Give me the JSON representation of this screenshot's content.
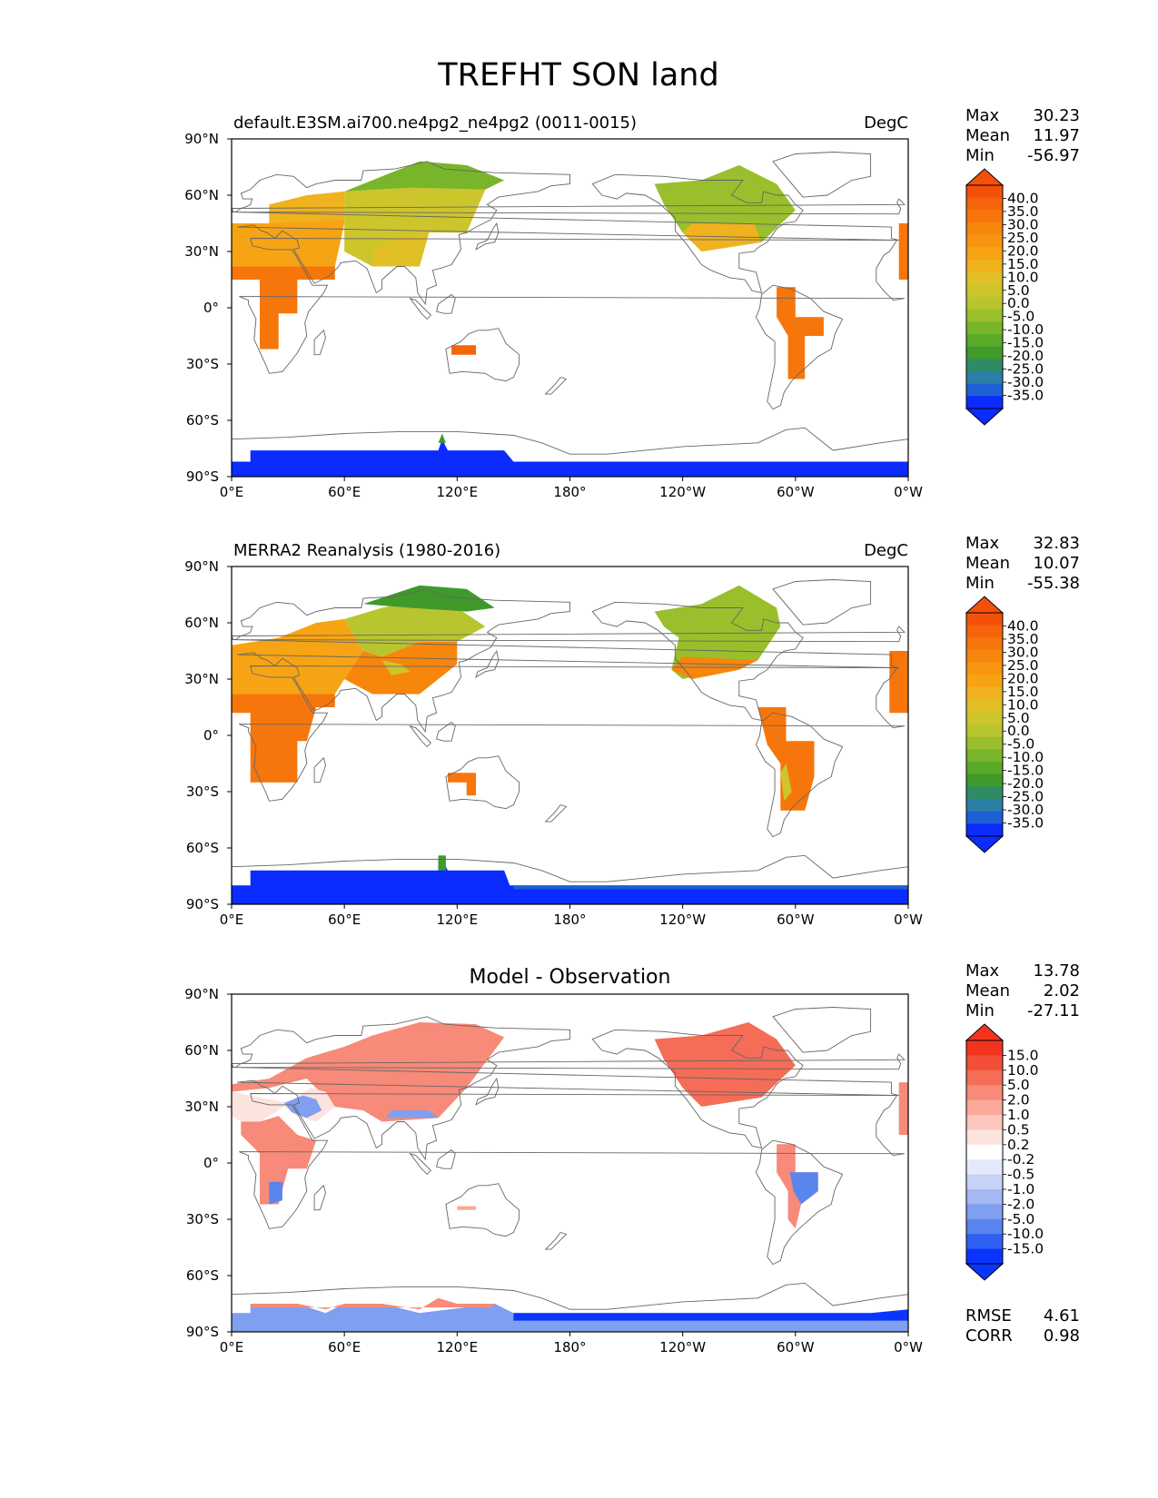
{
  "title": "TREFHT SON land",
  "colors": {
    "abs_levels": [
      "#0b2bff",
      "#1e5fd6",
      "#2a7fa6",
      "#2f8b66",
      "#3f9a2a",
      "#5aa928",
      "#79b52a",
      "#99bf2c",
      "#b9c52f",
      "#cdc52c",
      "#e0bf27",
      "#f0b21f",
      "#f7a414",
      "#f79510",
      "#f7860d",
      "#f6760c",
      "#f5640b",
      "#f4500a"
    ],
    "diff_levels": [
      "#0a35ff",
      "#2f5ff0",
      "#5a84ee",
      "#7f9ff0",
      "#a6b8f3",
      "#c7d2f7",
      "#e3e8fb",
      "#ffffff",
      "#fde3de",
      "#fbc6bc",
      "#f9a89a",
      "#f78a78",
      "#f56c57",
      "#f34e38",
      "#f2341f"
    ],
    "africa_abs": "#f7900f",
    "ocean": "#ffffff",
    "coast": "#666666"
  },
  "chart_data": [
    {
      "type": "heatmap",
      "panel": "test",
      "left_title": "default.E3SM.ai700.ne4pg2_ne4pg2 (0011-0015)",
      "center_title": "",
      "right_title": "DegC",
      "stats": [
        {
          "label": "Max",
          "value": "30.23"
        },
        {
          "label": "Mean",
          "value": "11.97"
        },
        {
          "label": "Min",
          "value": "-56.97"
        }
      ],
      "colorbar_labels": [
        "40.0",
        "35.0",
        "30.0",
        "25.0",
        "20.0",
        "15.0",
        "10.0",
        "5.0",
        "0.0",
        "-5.0",
        "-10.0",
        "-15.0",
        "-20.0",
        "-25.0",
        "-30.0",
        "-35.0"
      ],
      "lon_ticks": [
        "0°E",
        "60°E",
        "120°E",
        "180°",
        "120°W",
        "60°W",
        "0°W"
      ],
      "lat_ticks": [
        "90°N",
        "60°N",
        "30°N",
        "0°",
        "30°S",
        "60°S",
        "90°S"
      ],
      "xlim": [
        0,
        360
      ],
      "ylim": [
        -90,
        90
      ]
    },
    {
      "type": "heatmap",
      "panel": "reference",
      "left_title": "MERRA2 Reanalysis (1980-2016)",
      "center_title": "",
      "right_title": "DegC",
      "stats": [
        {
          "label": "Max",
          "value": "32.83"
        },
        {
          "label": "Mean",
          "value": "10.07"
        },
        {
          "label": "Min",
          "value": "-55.38"
        }
      ],
      "colorbar_labels": [
        "40.0",
        "35.0",
        "30.0",
        "25.0",
        "20.0",
        "15.0",
        "10.0",
        "5.0",
        "0.0",
        "-5.0",
        "-10.0",
        "-15.0",
        "-20.0",
        "-25.0",
        "-30.0",
        "-35.0"
      ],
      "lon_ticks": [
        "0°E",
        "60°E",
        "120°E",
        "180°",
        "120°W",
        "60°W",
        "0°W"
      ],
      "lat_ticks": [
        "90°N",
        "60°N",
        "30°N",
        "0°",
        "30°S",
        "60°S",
        "90°S"
      ],
      "xlim": [
        0,
        360
      ],
      "ylim": [
        -90,
        90
      ]
    },
    {
      "type": "heatmap",
      "panel": "difference",
      "left_title": "",
      "center_title": "Model - Observation",
      "right_title": "",
      "stats": [
        {
          "label": "Max",
          "value": "13.78"
        },
        {
          "label": "Mean",
          "value": "2.02"
        },
        {
          "label": "Min",
          "value": "-27.11"
        }
      ],
      "extra_stats": [
        {
          "label": "RMSE",
          "value": "4.61"
        },
        {
          "label": "CORR",
          "value": "0.98"
        }
      ],
      "colorbar_labels": [
        "15.0",
        "10.0",
        "5.0",
        "2.0",
        "1.0",
        "0.5",
        "0.2",
        "-0.2",
        "-0.5",
        "-1.0",
        "-2.0",
        "-5.0",
        "-10.0",
        "-15.0"
      ],
      "lon_ticks": [
        "0°E",
        "60°E",
        "120°E",
        "180°",
        "120°W",
        "60°W",
        "0°W"
      ],
      "lat_ticks": [
        "90°N",
        "60°N",
        "30°N",
        "0°",
        "30°S",
        "60°S",
        "90°S"
      ],
      "xlim": [
        0,
        360
      ],
      "ylim": [
        -90,
        90
      ]
    }
  ]
}
